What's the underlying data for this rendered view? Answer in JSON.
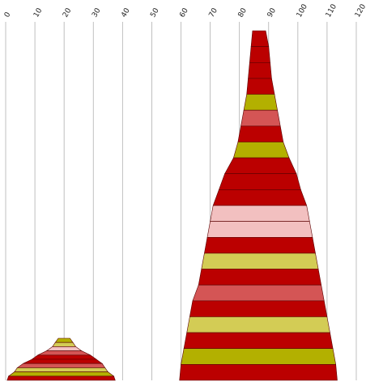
{
  "chart_data": {
    "type": "stacked-band-area",
    "title": "",
    "xlabel": "",
    "ylabel": "",
    "x_ticks": [
      "0",
      "10",
      "20",
      "30",
      "40",
      "50",
      "60",
      "70",
      "80",
      "90",
      "100",
      "110",
      "120"
    ],
    "xlim": [
      0,
      120
    ],
    "grid": "vertical",
    "colors": {
      "dark_red": "#bb0000",
      "coral": "#d45555",
      "pink": "#f2c0c0",
      "olive": "#b3b000",
      "khaki": "#d3cc55"
    },
    "shapes": [
      {
        "name": "",
        "center_x": 86,
        "band_colors": [
          "dark_red",
          "dark_red",
          "dark_red",
          "dark_red",
          "olive",
          "coral",
          "dark_red",
          "olive",
          "dark_red",
          "dark_red",
          "dark_red",
          "pink",
          "pink",
          "dark_red",
          "khaki",
          "dark_red",
          "coral",
          "dark_red",
          "khaki",
          "dark_red",
          "olive",
          "dark_red"
        ],
        "band_ranges": [
          [
            84.5,
            89
          ],
          [
            84,
            90
          ],
          [
            83.5,
            90.5
          ],
          [
            83,
            91
          ],
          [
            82.5,
            92
          ],
          [
            81.5,
            93
          ],
          [
            80.5,
            94
          ],
          [
            79.5,
            95
          ],
          [
            78,
            97
          ],
          [
            75,
            99.5
          ],
          [
            73,
            101
          ],
          [
            71,
            103
          ],
          [
            70,
            104
          ],
          [
            69,
            105
          ],
          [
            68,
            106
          ],
          [
            67,
            107
          ],
          [
            66,
            108
          ],
          [
            64,
            109
          ],
          [
            63,
            110
          ],
          [
            62,
            111
          ],
          [
            61,
            112
          ],
          [
            60,
            113
          ]
        ]
      },
      {
        "name": "",
        "center_x": 20,
        "band_colors": [
          "olive",
          "khaki",
          "pink",
          "coral",
          "dark_red",
          "dark_red",
          "coral",
          "khaki",
          "olive",
          "dark_red"
        ],
        "band_ranges": [
          [
            18,
            22
          ],
          [
            17,
            23
          ],
          [
            16,
            24
          ],
          [
            14,
            26
          ],
          [
            11,
            29
          ],
          [
            9,
            31
          ],
          [
            6,
            33
          ],
          [
            4,
            34
          ],
          [
            3,
            35
          ],
          [
            1,
            37
          ]
        ]
      }
    ]
  }
}
